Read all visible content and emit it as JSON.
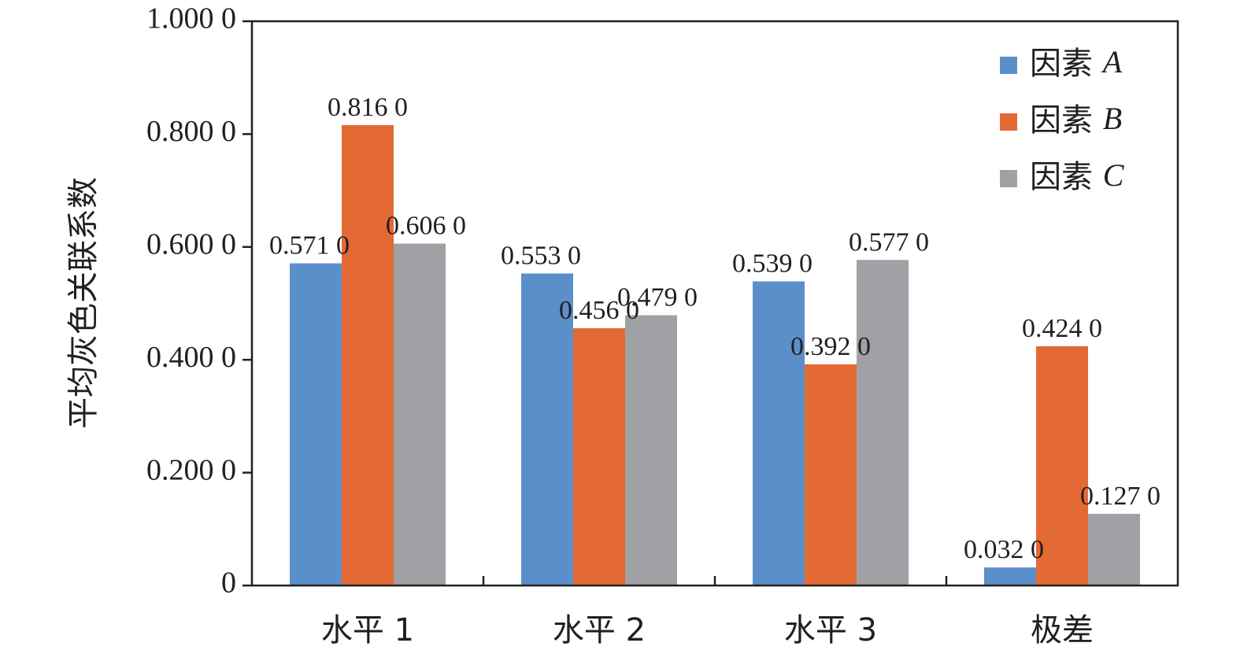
{
  "chart_data": {
    "type": "bar",
    "ylabel": "平均灰色关联系数",
    "xlabel": "",
    "ylim": [
      0,
      1.0
    ],
    "yticks": [
      "0",
      "0.200 0",
      "0.400 0",
      "0.600 0",
      "0.800 0",
      "1.000 0"
    ],
    "categories": [
      "水平 1",
      "水平 2",
      "水平 3",
      "极差"
    ],
    "series": [
      {
        "name": "因素 A",
        "prefix": "因素",
        "symbol": "A",
        "color": "#5b8fca",
        "values": [
          0.571,
          0.553,
          0.539,
          0.032
        ],
        "labels": [
          "0.571 0",
          "0.553 0",
          "0.539 0",
          "0.032 0"
        ]
      },
      {
        "name": "因素 B",
        "prefix": "因素",
        "symbol": "B",
        "color": "#e36a35",
        "values": [
          0.816,
          0.456,
          0.392,
          0.424
        ],
        "labels": [
          "0.816 0",
          "0.456 0",
          "0.392 0",
          "0.424 0"
        ]
      },
      {
        "name": "因素 C",
        "prefix": "因素",
        "symbol": "C",
        "color": "#a0a1a4",
        "values": [
          0.606,
          0.479,
          0.577,
          0.127
        ],
        "labels": [
          "0.606 0",
          "0.479 0",
          "0.577 0",
          "0.127 0"
        ]
      }
    ],
    "legend": "top-right",
    "grid": false
  }
}
